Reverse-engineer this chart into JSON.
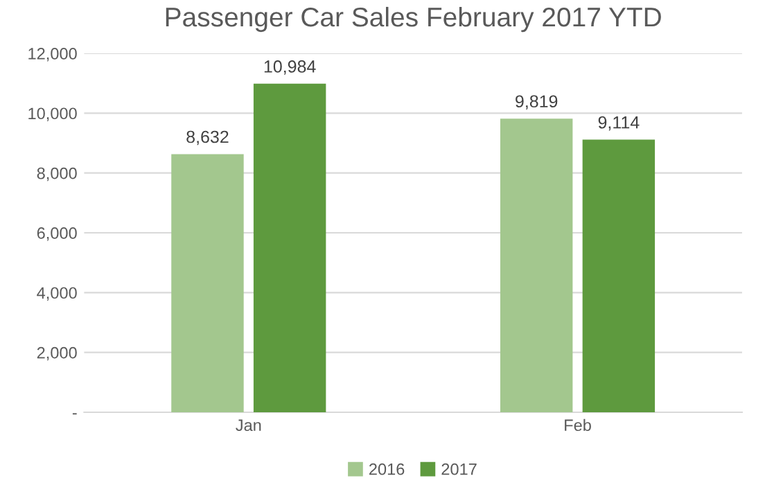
{
  "chart_data": {
    "type": "bar",
    "title": "Passenger Car Sales February 2017 YTD",
    "categories": [
      "Jan",
      "Feb"
    ],
    "series": [
      {
        "name": "2016",
        "color": "#a3c78e",
        "values": [
          8632,
          9819
        ]
      },
      {
        "name": "2017",
        "color": "#5e9a3e",
        "values": [
          10984,
          9114
        ]
      }
    ],
    "ylim": [
      0,
      12000
    ],
    "yticks": [
      {
        "value": 0,
        "label": "-"
      },
      {
        "value": 2000,
        "label": "2,000"
      },
      {
        "value": 4000,
        "label": "4,000"
      },
      {
        "value": 6000,
        "label": "6,000"
      },
      {
        "value": 8000,
        "label": "8,000"
      },
      {
        "value": 10000,
        "label": "10,000"
      },
      {
        "value": 12000,
        "label": "12,000"
      }
    ],
    "value_labels": [
      [
        "8,632",
        "9,819"
      ],
      [
        "10,984",
        "9,114"
      ]
    ],
    "grid": "y",
    "legend": "bottom"
  }
}
